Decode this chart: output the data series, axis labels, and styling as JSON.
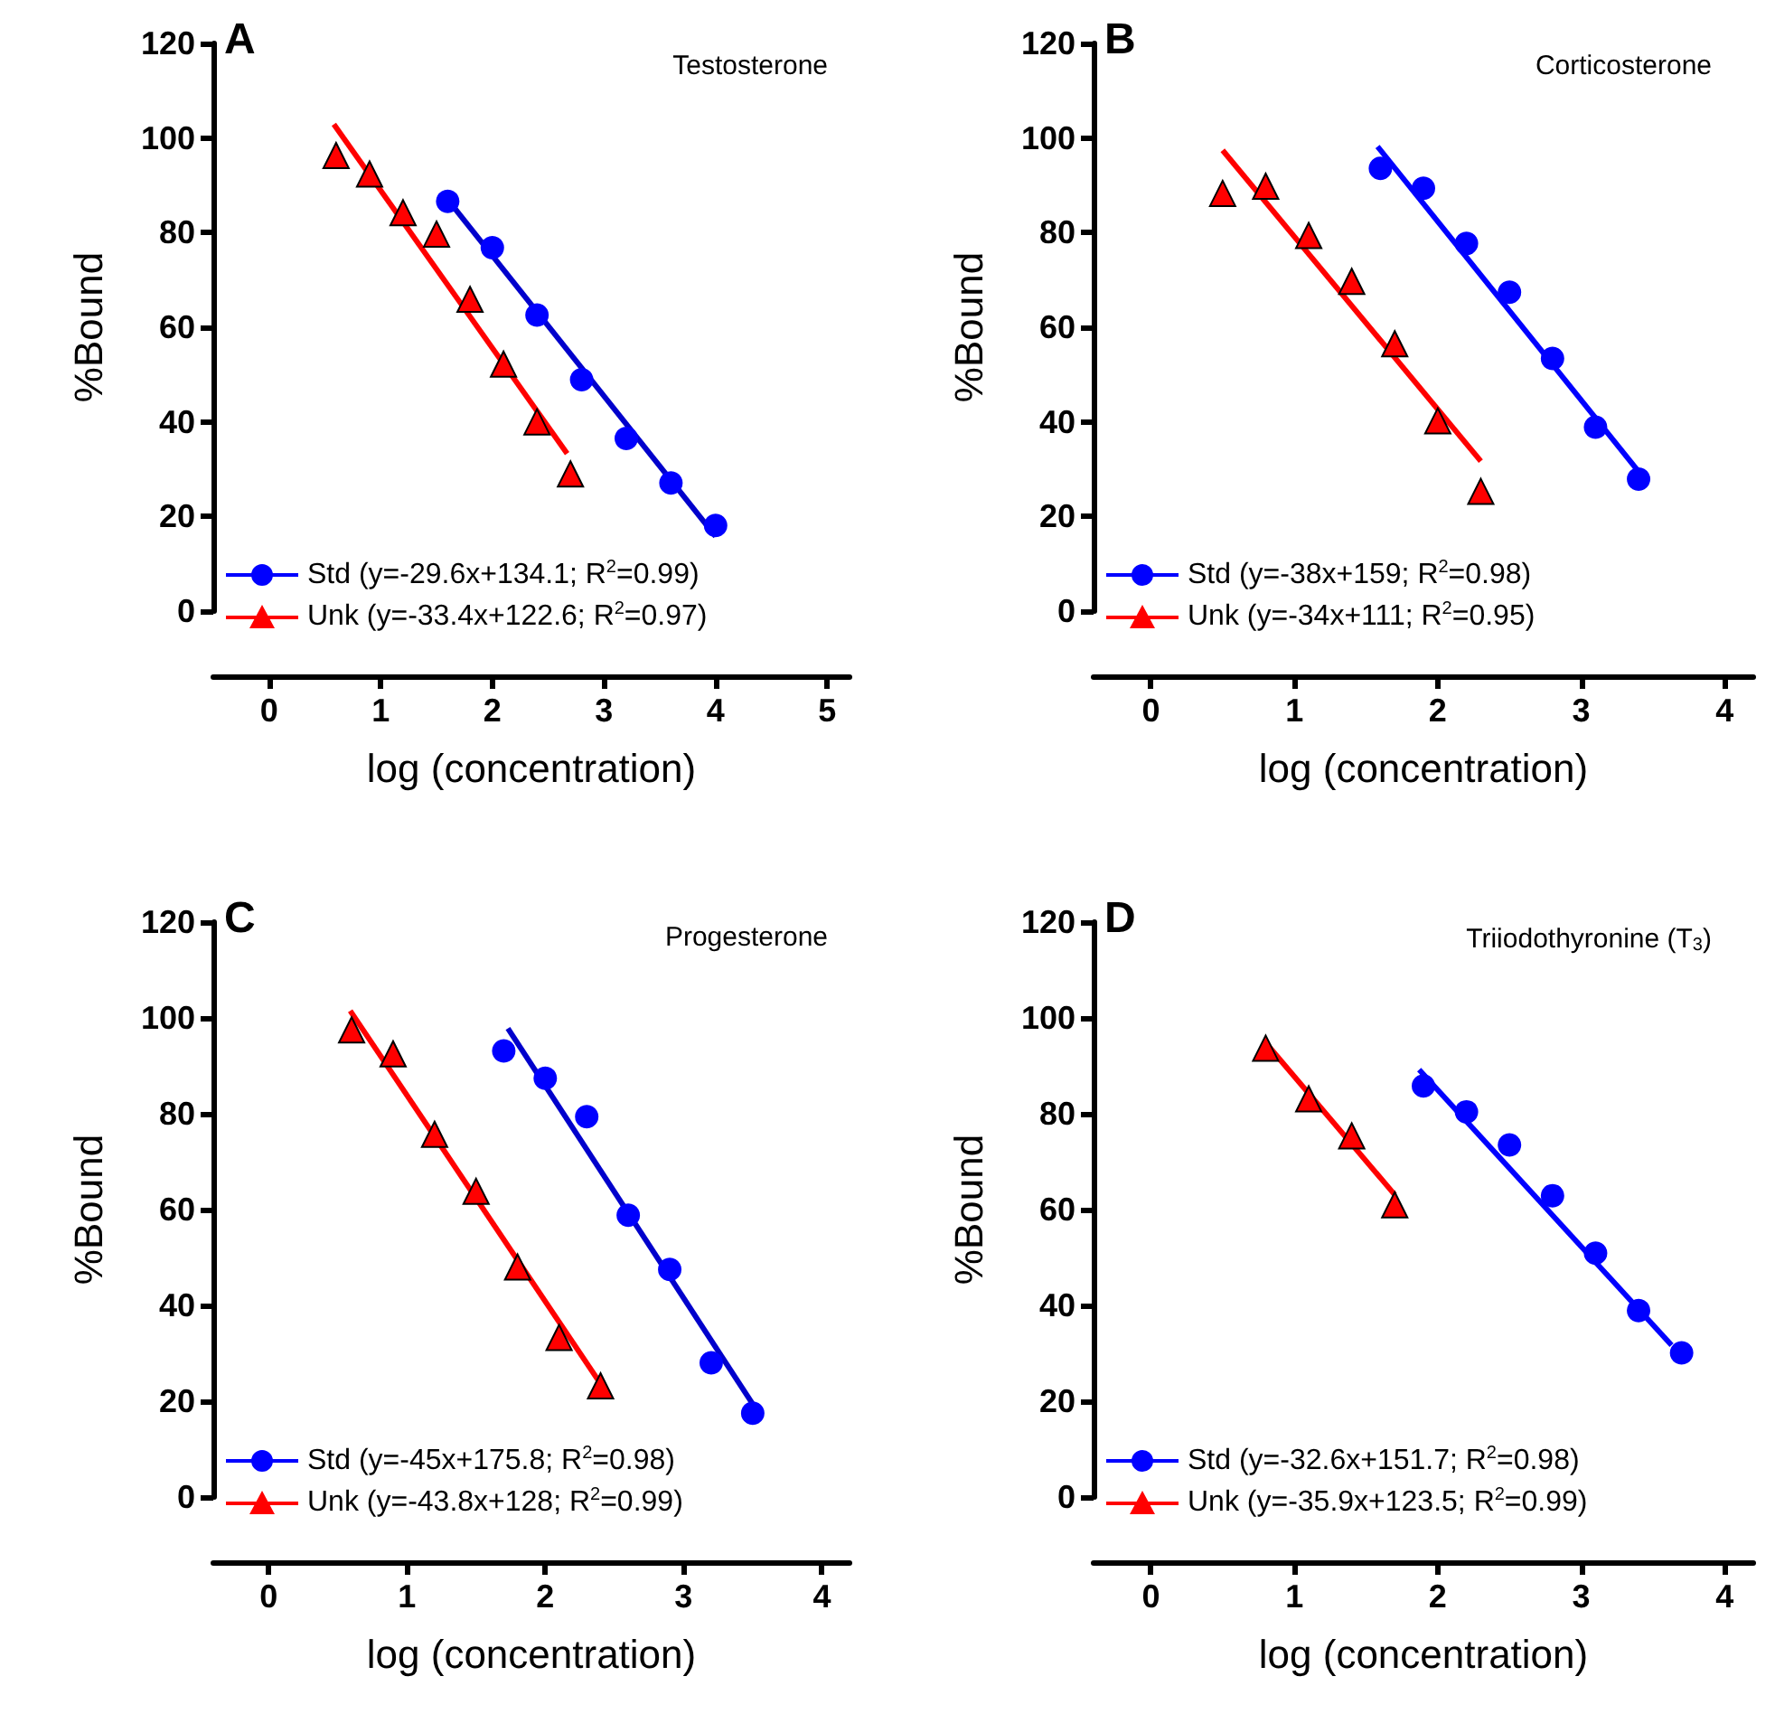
{
  "chart_data": [
    {
      "type": "scatter",
      "title": "Testosterone",
      "annotations": [
        "A"
      ],
      "xlabel": "log (concentration)",
      "ylabel": "%Bound",
      "xlim": [
        -0.5,
        5.2
      ],
      "xticks": [
        0,
        1,
        2,
        3,
        4,
        5
      ],
      "ylim": [
        0,
        120
      ],
      "yticks": [
        0,
        20,
        40,
        60,
        80,
        100,
        120
      ],
      "grid": false,
      "legend": "bottom left",
      "series": [
        {
          "name": "Std (y=-29.6x+134.1; R$^{2}$=0.99)",
          "marker": "circle",
          "color": "#0000ff",
          "x": [
            1.6,
            2.0,
            2.4,
            2.8,
            3.2,
            3.6,
            4.0
          ],
          "values": [
            86.6,
            76.8,
            62.6,
            48.9,
            36.5,
            27.1,
            18.1
          ]
        },
        {
          "name": "Unk (y=-33.4x+122.6; R$^{2}$=0.97)",
          "marker": "triangle",
          "color": "#ff0000",
          "x": [
            0.6,
            0.9,
            1.2,
            1.5,
            1.8,
            2.1,
            2.4,
            2.7
          ],
          "values": [
            96.3,
            92.4,
            84.2,
            79.7,
            65.9,
            52.2,
            40.0,
            29.0
          ]
        },
        {
          "type": "line",
          "line_style": "solid",
          "color": "#0000cc",
          "x": [
            1.6,
            4.0
          ],
          "values": [
            87.0,
            15.8
          ]
        },
        {
          "type": "line",
          "line_style": "solid",
          "color": "#ff0000",
          "x": [
            0.58,
            2.67
          ],
          "values": [
            102.9,
            33.3
          ]
        }
      ]
    },
    {
      "type": "scatter",
      "title": "Corticosterone",
      "annotations": [
        "B"
      ],
      "xlabel": "log (concentration)",
      "ylabel": "%Bound",
      "xlim": [
        -0.4,
        4.2
      ],
      "xticks": [
        0,
        1,
        2,
        3,
        4
      ],
      "ylim": [
        0,
        120
      ],
      "yticks": [
        0,
        20,
        40,
        60,
        80,
        100,
        120
      ],
      "grid": false,
      "legend": "bottom left",
      "series": [
        {
          "name": "Std (y=-38x+159; R$^{2}$=0.98)",
          "marker": "circle",
          "color": "#0000ff",
          "x": [
            1.6,
            1.9,
            2.2,
            2.5,
            2.8,
            3.1,
            3.4
          ],
          "values": [
            93.6,
            89.4,
            77.7,
            67.4,
            53.4,
            38.9,
            27.9
          ]
        },
        {
          "name": "Unk (y=-34x+111; R$^{2}$=0.95)",
          "marker": "triangle",
          "color": "#ff0000",
          "x": [
            0.5,
            0.8,
            1.1,
            1.4,
            1.7,
            2.0,
            2.3
          ],
          "values": [
            88.3,
            89.8,
            79.4,
            69.7,
            56.5,
            40.2,
            25.3
          ]
        },
        {
          "type": "line",
          "line_style": "solid",
          "color": "#0000ff",
          "x": [
            1.58,
            3.4
          ],
          "values": [
            98.2,
            29.5
          ]
        },
        {
          "type": "line",
          "line_style": "solid",
          "color": "#ff0000",
          "x": [
            0.5,
            2.3
          ],
          "values": [
            97.4,
            31.7
          ]
        }
      ]
    },
    {
      "type": "scatter",
      "title": "Progesterone",
      "annotations": [
        "C"
      ],
      "xlabel": "log (concentration)",
      "ylabel": "%Bound",
      "xlim": [
        -0.4,
        4.2
      ],
      "xticks": [
        0,
        1,
        2,
        3,
        4
      ],
      "ylim": [
        0,
        120
      ],
      "yticks": [
        0,
        20,
        40,
        60,
        80,
        100,
        120
      ],
      "grid": false,
      "legend": "bottom left",
      "series": [
        {
          "name": "Std (y=-45x+175.8; R$^{2}$=0.98)",
          "marker": "circle",
          "color": "#0000ff",
          "x": [
            1.7,
            2.0,
            2.3,
            2.6,
            2.9,
            3.2,
            3.5
          ],
          "values": [
            93.1,
            87.4,
            79.4,
            58.8,
            47.5,
            28.0,
            17.5
          ]
        },
        {
          "name": "Unk (y=-43.8x+128; R$^{2}$=0.99)",
          "marker": "triangle",
          "color": "#ff0000",
          "x": [
            0.6,
            0.9,
            1.2,
            1.5,
            1.8,
            2.1,
            2.4
          ],
          "values": [
            97.5,
            92.5,
            75.7,
            63.8,
            48.0,
            33.3,
            23.2
          ]
        },
        {
          "type": "line",
          "line_style": "solid",
          "color": "#0000cc",
          "x": [
            1.73,
            3.5
          ],
          "values": [
            97.8,
            19.4
          ]
        },
        {
          "type": "line",
          "line_style": "solid",
          "color": "#ff0000",
          "x": [
            0.59,
            2.38
          ],
          "values": [
            101.5,
            24.5
          ]
        }
      ]
    },
    {
      "type": "scatter",
      "title": "Triiodothyronine (T$_{3}$)",
      "annotations": [
        "D"
      ],
      "xlabel": "log (concentration)",
      "ylabel": "%Bound",
      "xlim": [
        -0.4,
        4.2
      ],
      "xticks": [
        0,
        1,
        2,
        3,
        4
      ],
      "ylim": [
        0,
        120
      ],
      "yticks": [
        0,
        20,
        40,
        60,
        80,
        100,
        120
      ],
      "grid": false,
      "legend": "bottom left",
      "series": [
        {
          "name": "Std (y=-32.6x+151.7; R$^{2}$=0.98)",
          "marker": "circle",
          "color": "#0000ff",
          "x": [
            1.9,
            2.2,
            2.5,
            2.8,
            3.1,
            3.4,
            3.7
          ],
          "values": [
            85.8,
            80.4,
            73.5,
            62.9,
            50.9,
            38.9,
            30.1
          ]
        },
        {
          "name": "Unk (y=-35.9x+123.5; R$^{2}$=0.99)",
          "marker": "triangle",
          "color": "#ff0000",
          "x": [
            0.8,
            1.1,
            1.4,
            1.7
          ],
          "values": [
            93.7,
            83.1,
            75.4,
            61.0
          ]
        },
        {
          "type": "line",
          "line_style": "solid",
          "color": "#0000ff",
          "x": [
            1.87,
            3.63
          ],
          "values": [
            89.2,
            31.7
          ]
        },
        {
          "type": "line",
          "line_style": "solid",
          "color": "#ff0000",
          "x": [
            0.8,
            1.7
          ],
          "values": [
            94.8,
            63.1
          ]
        }
      ]
    }
  ]
}
